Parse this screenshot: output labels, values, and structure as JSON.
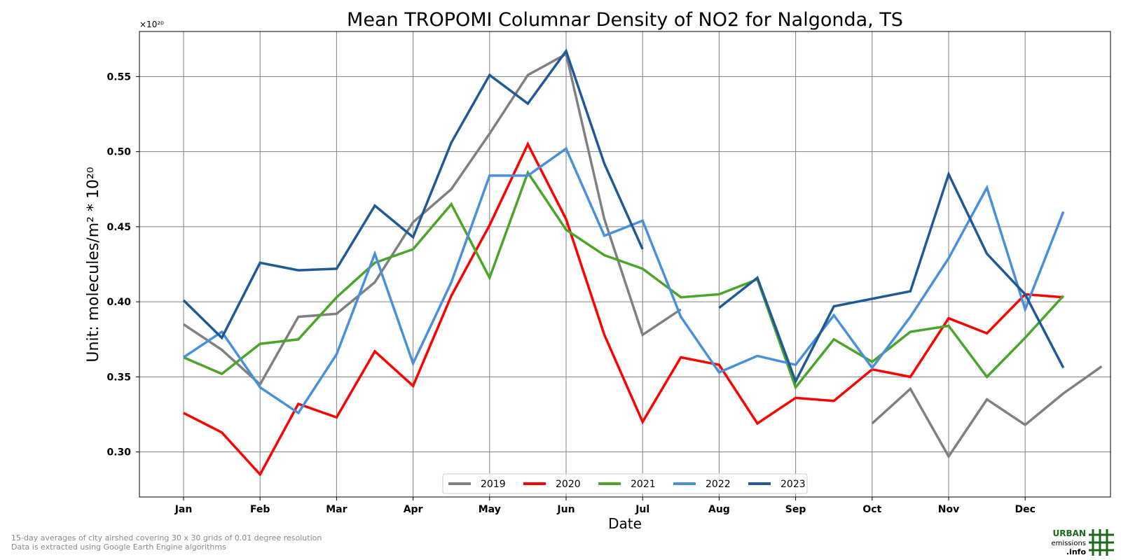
{
  "chart_data": {
    "type": "line",
    "title": "Mean TROPOMI Columnar Density of NO2 for Nalgonda, TS",
    "xlabel": "Date",
    "ylabel": "Unit: molecules/m² * 10²⁰",
    "offset_label": "×10²⁰",
    "ylim": [
      0.27,
      0.58
    ],
    "yticks": [
      0.3,
      0.35,
      0.4,
      0.45,
      0.5,
      0.55
    ],
    "ytick_labels": [
      "0.30",
      "0.35",
      "0.40",
      "0.45",
      "0.50",
      "0.55"
    ],
    "month_labels": [
      "Jan",
      "Feb",
      "Mar",
      "Apr",
      "May",
      "Jun",
      "Jul",
      "Aug",
      "Sep",
      "Oct",
      "Nov",
      "Dec"
    ],
    "grid": true,
    "legend_position": "bottom-center",
    "series": [
      {
        "name": "2019",
        "color": "#808080",
        "values": [
          0.385,
          0.368,
          0.345,
          0.39,
          0.392,
          0.413,
          0.453,
          0.475,
          0.512,
          0.551,
          0.565,
          0.455,
          0.378,
          0.395,
          null,
          null,
          null,
          null,
          0.319,
          0.342,
          0.297,
          0.335,
          0.318,
          0.339,
          0.357
        ]
      },
      {
        "name": "2020",
        "color": "#ff0000",
        "values": [
          0.326,
          0.313,
          0.285,
          0.332,
          0.323,
          0.367,
          0.344,
          0.404,
          0.451,
          0.505,
          0.455,
          0.378,
          0.32,
          0.363,
          0.358,
          0.319,
          0.336,
          0.334,
          0.355,
          0.35,
          0.389,
          0.379,
          0.405,
          0.403
        ]
      },
      {
        "name": "2021",
        "color": "#4ba529",
        "values": [
          0.363,
          0.352,
          0.372,
          0.375,
          0.403,
          0.426,
          0.435,
          0.465,
          0.416,
          0.486,
          0.448,
          0.431,
          0.422,
          0.403,
          0.405,
          0.415,
          0.343,
          0.375,
          0.36,
          0.38,
          0.384,
          0.35,
          0.376,
          0.404
        ]
      },
      {
        "name": "2022",
        "color": "#4a90d9",
        "values": [
          0.363,
          0.38,
          0.343,
          0.326,
          0.365,
          0.432,
          0.359,
          0.413,
          0.484,
          0.484,
          0.502,
          0.444,
          0.454,
          0.39,
          0.353,
          0.364,
          0.358,
          0.391,
          0.356,
          0.39,
          0.429,
          0.476,
          0.395,
          0.46
        ]
      },
      {
        "name": "2023",
        "color": "#1f5a96",
        "values": [
          0.401,
          0.376,
          0.426,
          0.421,
          0.422,
          0.464,
          0.443,
          0.506,
          0.551,
          0.532,
          0.567,
          0.492,
          0.435,
          null,
          0.396,
          0.416,
          0.347,
          0.397,
          0.402,
          0.407,
          0.485,
          0.432,
          0.405,
          0.356
        ]
      }
    ]
  },
  "footnote": {
    "line1": "15-day averages of city airshed covering 30 x 30 grids of 0.01 degree resolution",
    "line2": "Data is extracted using Google Earth Engine algorithms"
  },
  "logo": {
    "line1": "URBAN",
    "line2": "emissions",
    "line3": ".info",
    "color": "#1a6a1a"
  }
}
